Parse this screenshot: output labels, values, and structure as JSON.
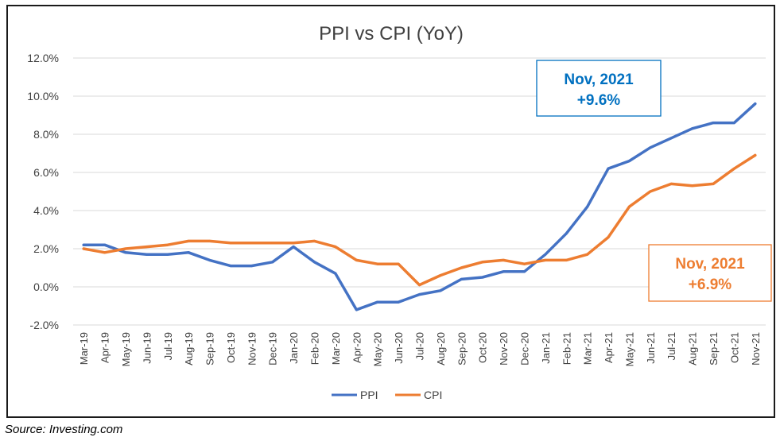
{
  "chart_data": {
    "type": "line",
    "title": "PPI vs CPI (YoY)",
    "xlabel": "",
    "ylabel": "",
    "ylim": [
      -2.0,
      12.0
    ],
    "yticks": [
      "12.0%",
      "10.0%",
      "8.0%",
      "6.0%",
      "4.0%",
      "2.0%",
      "0.0%",
      "-2.0%"
    ],
    "ytick_values": [
      12,
      10,
      8,
      6,
      4,
      2,
      0,
      -2
    ],
    "grid": true,
    "legend_position": "bottom",
    "categories": [
      "Mar-19",
      "Apr-19",
      "May-19",
      "Jun-19",
      "Jul-19",
      "Aug-19",
      "Sep-19",
      "Oct-19",
      "Nov-19",
      "Dec-19",
      "Jan-20",
      "Feb-20",
      "Mar-20",
      "Apr-20",
      "May-20",
      "Jun-20",
      "Jul-20",
      "Aug-20",
      "Sep-20",
      "Oct-20",
      "Nov-20",
      "Dec-20",
      "Jan-21",
      "Feb-21",
      "Mar-21",
      "Apr-21",
      "May-21",
      "Jun-21",
      "Jul-21",
      "Aug-21",
      "Sep-21",
      "Oct-21",
      "Nov-21"
    ],
    "series": [
      {
        "name": "PPI",
        "color": "#4472C4",
        "values": [
          2.2,
          2.2,
          1.8,
          1.7,
          1.7,
          1.8,
          1.4,
          1.1,
          1.1,
          1.3,
          2.1,
          1.3,
          0.7,
          -1.2,
          -0.8,
          -0.8,
          -0.4,
          -0.2,
          0.4,
          0.5,
          0.8,
          0.8,
          1.7,
          2.8,
          4.2,
          6.2,
          6.6,
          7.3,
          7.8,
          8.3,
          8.6,
          8.6,
          9.6
        ]
      },
      {
        "name": "CPI",
        "color": "#ED7D31",
        "values": [
          2.0,
          1.8,
          2.0,
          2.1,
          2.2,
          2.4,
          2.4,
          2.3,
          2.3,
          2.3,
          2.3,
          2.4,
          2.1,
          1.4,
          1.2,
          1.2,
          0.1,
          0.6,
          1.0,
          1.3,
          1.4,
          1.2,
          1.4,
          1.4,
          1.7,
          2.6,
          4.2,
          5.0,
          5.4,
          5.3,
          5.4,
          6.2,
          6.9
        ]
      }
    ],
    "annotations": [
      {
        "line1": "Nov, 2021",
        "line2": "+9.6%",
        "color": "#0070C0"
      },
      {
        "line1": "Nov, 2021",
        "line2": "+6.9%",
        "color": "#ED7D31"
      }
    ]
  },
  "source": "Source:  Investing.com"
}
